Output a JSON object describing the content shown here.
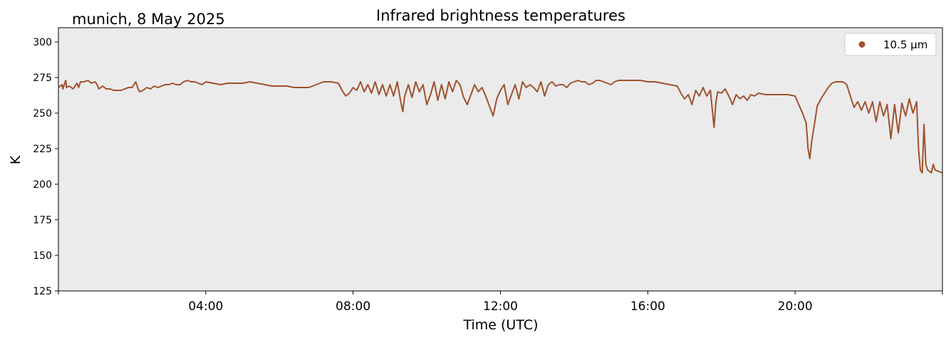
{
  "chart_data": {
    "type": "line",
    "title": "Infrared brightness temperatures",
    "location_date": "munich, 8 May 2025",
    "xlabel": "Time (UTC)",
    "ylabel": "K",
    "xlim": [
      0,
      24
    ],
    "ylim": [
      125,
      310
    ],
    "x_ticks": [
      {
        "value": 4,
        "label": "04:00"
      },
      {
        "value": 8,
        "label": "08:00"
      },
      {
        "value": 12,
        "label": "12:00"
      },
      {
        "value": 16,
        "label": "16:00"
      },
      {
        "value": 20,
        "label": "20:00"
      }
    ],
    "y_ticks": [
      125,
      150,
      175,
      200,
      225,
      250,
      275,
      300
    ],
    "grid": false,
    "background_color": "#ebebeb",
    "legend_position": "top-right",
    "series": [
      {
        "name": "10.5 µm",
        "color": "#a0522d",
        "points": [
          [
            0.0,
            268
          ],
          [
            0.1,
            270
          ],
          [
            0.12,
            267
          ],
          [
            0.2,
            273
          ],
          [
            0.22,
            268
          ],
          [
            0.3,
            269
          ],
          [
            0.4,
            267
          ],
          [
            0.5,
            271
          ],
          [
            0.55,
            268
          ],
          [
            0.6,
            272
          ],
          [
            0.7,
            272
          ],
          [
            0.8,
            273
          ],
          [
            0.9,
            271
          ],
          [
            1.0,
            272
          ],
          [
            1.05,
            270
          ],
          [
            1.1,
            267
          ],
          [
            1.2,
            269
          ],
          [
            1.3,
            267
          ],
          [
            1.4,
            267
          ],
          [
            1.5,
            266
          ],
          [
            1.6,
            266
          ],
          [
            1.7,
            266
          ],
          [
            1.8,
            267
          ],
          [
            1.9,
            268
          ],
          [
            2.0,
            268
          ],
          [
            2.1,
            272
          ],
          [
            2.15,
            268
          ],
          [
            2.2,
            265
          ],
          [
            2.3,
            266
          ],
          [
            2.4,
            268
          ],
          [
            2.5,
            267
          ],
          [
            2.6,
            269
          ],
          [
            2.7,
            268
          ],
          [
            2.8,
            269
          ],
          [
            2.9,
            270
          ],
          [
            3.0,
            270
          ],
          [
            3.1,
            271
          ],
          [
            3.2,
            270
          ],
          [
            3.3,
            270
          ],
          [
            3.4,
            272
          ],
          [
            3.5,
            273
          ],
          [
            3.6,
            272
          ],
          [
            3.7,
            272
          ],
          [
            3.8,
            271
          ],
          [
            3.9,
            270
          ],
          [
            4.0,
            272
          ],
          [
            4.2,
            271
          ],
          [
            4.4,
            270
          ],
          [
            4.6,
            271
          ],
          [
            4.8,
            271
          ],
          [
            5.0,
            271
          ],
          [
            5.2,
            272
          ],
          [
            5.4,
            271
          ],
          [
            5.6,
            270
          ],
          [
            5.8,
            269
          ],
          [
            6.0,
            269
          ],
          [
            6.2,
            269
          ],
          [
            6.4,
            268
          ],
          [
            6.6,
            268
          ],
          [
            6.8,
            268
          ],
          [
            7.0,
            270
          ],
          [
            7.2,
            272
          ],
          [
            7.4,
            272
          ],
          [
            7.6,
            271
          ],
          [
            7.7,
            266
          ],
          [
            7.8,
            262
          ],
          [
            7.9,
            264
          ],
          [
            8.0,
            268
          ],
          [
            8.1,
            266
          ],
          [
            8.2,
            272
          ],
          [
            8.3,
            265
          ],
          [
            8.4,
            270
          ],
          [
            8.5,
            264
          ],
          [
            8.6,
            272
          ],
          [
            8.7,
            263
          ],
          [
            8.8,
            270
          ],
          [
            8.9,
            262
          ],
          [
            9.0,
            270
          ],
          [
            9.1,
            262
          ],
          [
            9.2,
            272
          ],
          [
            9.3,
            257
          ],
          [
            9.35,
            251
          ],
          [
            9.4,
            262
          ],
          [
            9.5,
            270
          ],
          [
            9.6,
            261
          ],
          [
            9.7,
            272
          ],
          [
            9.8,
            265
          ],
          [
            9.9,
            270
          ],
          [
            10.0,
            256
          ],
          [
            10.1,
            263
          ],
          [
            10.2,
            272
          ],
          [
            10.3,
            259
          ],
          [
            10.4,
            270
          ],
          [
            10.5,
            260
          ],
          [
            10.6,
            272
          ],
          [
            10.7,
            265
          ],
          [
            10.8,
            273
          ],
          [
            10.9,
            270
          ],
          [
            11.0,
            261
          ],
          [
            11.1,
            256
          ],
          [
            11.2,
            263
          ],
          [
            11.3,
            270
          ],
          [
            11.4,
            265
          ],
          [
            11.5,
            268
          ],
          [
            11.6,
            262
          ],
          [
            11.7,
            255
          ],
          [
            11.8,
            248
          ],
          [
            11.9,
            260
          ],
          [
            12.0,
            266
          ],
          [
            12.1,
            270
          ],
          [
            12.2,
            256
          ],
          [
            12.3,
            263
          ],
          [
            12.4,
            270
          ],
          [
            12.5,
            260
          ],
          [
            12.6,
            272
          ],
          [
            12.7,
            268
          ],
          [
            12.8,
            270
          ],
          [
            12.9,
            268
          ],
          [
            13.0,
            265
          ],
          [
            13.1,
            272
          ],
          [
            13.2,
            262
          ],
          [
            13.3,
            270
          ],
          [
            13.4,
            272
          ],
          [
            13.5,
            269
          ],
          [
            13.6,
            270
          ],
          [
            13.7,
            270
          ],
          [
            13.8,
            268
          ],
          [
            13.9,
            271
          ],
          [
            14.0,
            272
          ],
          [
            14.1,
            273
          ],
          [
            14.2,
            272
          ],
          [
            14.3,
            272
          ],
          [
            14.4,
            270
          ],
          [
            14.5,
            271
          ],
          [
            14.6,
            273
          ],
          [
            14.7,
            273
          ],
          [
            14.8,
            272
          ],
          [
            14.9,
            271
          ],
          [
            15.0,
            270
          ],
          [
            15.1,
            272
          ],
          [
            15.2,
            273
          ],
          [
            15.4,
            273
          ],
          [
            15.6,
            273
          ],
          [
            15.8,
            273
          ],
          [
            16.0,
            272
          ],
          [
            16.2,
            272
          ],
          [
            16.4,
            271
          ],
          [
            16.6,
            270
          ],
          [
            16.8,
            269
          ],
          [
            16.9,
            264
          ],
          [
            17.0,
            260
          ],
          [
            17.1,
            263
          ],
          [
            17.2,
            256
          ],
          [
            17.3,
            266
          ],
          [
            17.4,
            262
          ],
          [
            17.5,
            268
          ],
          [
            17.6,
            262
          ],
          [
            17.7,
            266
          ],
          [
            17.8,
            240
          ],
          [
            17.85,
            258
          ],
          [
            17.9,
            265
          ],
          [
            18.0,
            264
          ],
          [
            18.1,
            267
          ],
          [
            18.2,
            262
          ],
          [
            18.3,
            256
          ],
          [
            18.4,
            263
          ],
          [
            18.5,
            260
          ],
          [
            18.6,
            262
          ],
          [
            18.7,
            259
          ],
          [
            18.8,
            263
          ],
          [
            18.9,
            262
          ],
          [
            19.0,
            264
          ],
          [
            19.2,
            263
          ],
          [
            19.4,
            263
          ],
          [
            19.6,
            263
          ],
          [
            19.8,
            263
          ],
          [
            20.0,
            262
          ],
          [
            20.1,
            256
          ],
          [
            20.2,
            250
          ],
          [
            20.3,
            243
          ],
          [
            20.35,
            225
          ],
          [
            20.4,
            218
          ],
          [
            20.45,
            230
          ],
          [
            20.5,
            238
          ],
          [
            20.6,
            255
          ],
          [
            20.7,
            260
          ],
          [
            20.8,
            264
          ],
          [
            20.9,
            268
          ],
          [
            21.0,
            271
          ],
          [
            21.1,
            272
          ],
          [
            21.2,
            272
          ],
          [
            21.3,
            272
          ],
          [
            21.4,
            270
          ],
          [
            21.5,
            262
          ],
          [
            21.6,
            254
          ],
          [
            21.7,
            258
          ],
          [
            21.8,
            252
          ],
          [
            21.9,
            258
          ],
          [
            22.0,
            250
          ],
          [
            22.1,
            258
          ],
          [
            22.2,
            244
          ],
          [
            22.3,
            258
          ],
          [
            22.4,
            248
          ],
          [
            22.5,
            256
          ],
          [
            22.6,
            232
          ],
          [
            22.7,
            256
          ],
          [
            22.8,
            236
          ],
          [
            22.9,
            257
          ],
          [
            23.0,
            248
          ],
          [
            23.1,
            260
          ],
          [
            23.2,
            250
          ],
          [
            23.3,
            258
          ],
          [
            23.35,
            225
          ],
          [
            23.4,
            210
          ],
          [
            23.45,
            208
          ],
          [
            23.5,
            242
          ],
          [
            23.55,
            214
          ],
          [
            23.6,
            210
          ],
          [
            23.7,
            208
          ],
          [
            23.75,
            214
          ],
          [
            23.8,
            210
          ],
          [
            23.9,
            209
          ],
          [
            24.0,
            208
          ]
        ]
      }
    ]
  }
}
